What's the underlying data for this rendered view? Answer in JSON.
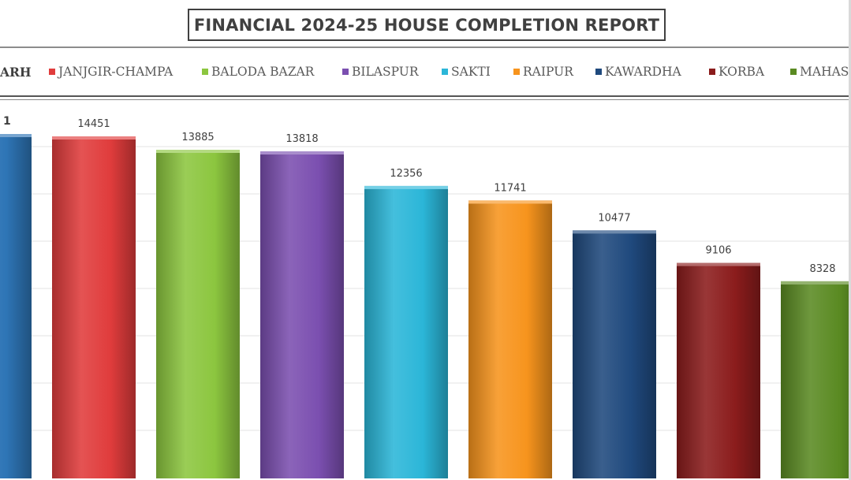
{
  "chart_data": {
    "type": "bar",
    "title": "FINANCIAL 2024-25 HOUSE COMPLETION REPORT",
    "categories": [
      "…ARH",
      "JANJGIR-CHAMPA",
      "BALODA BAZAR",
      "BILASPUR",
      "SAKTI",
      "RAIPUR",
      "KAWARDHA",
      "KORBA",
      "MAHAS…"
    ],
    "values": [
      null,
      14451,
      13885,
      13818,
      12356,
      11741,
      10477,
      9106,
      8328
    ],
    "data_labels": [
      "1",
      "14451",
      "13885",
      "13818",
      "12356",
      "11741",
      "10477",
      "9106",
      "8328"
    ],
    "colors": [
      "#2e75b6",
      "#e03c3c",
      "#8cc63f",
      "#7b4fb0",
      "#2bb6d8",
      "#f7941d",
      "#1f497d",
      "#8b1c1c",
      "#5a8a22"
    ],
    "legend": {
      "placement": "top",
      "entries": [
        "ARH",
        "JANJGIR-CHAMPA",
        "BALODA BAZAR",
        "BILASPUR",
        "SAKTI",
        "RAIPUR",
        "KAWARDHA",
        "KORBA",
        "MAHAS"
      ]
    },
    "grid": true,
    "ylim": [
      0,
      16000
    ]
  }
}
